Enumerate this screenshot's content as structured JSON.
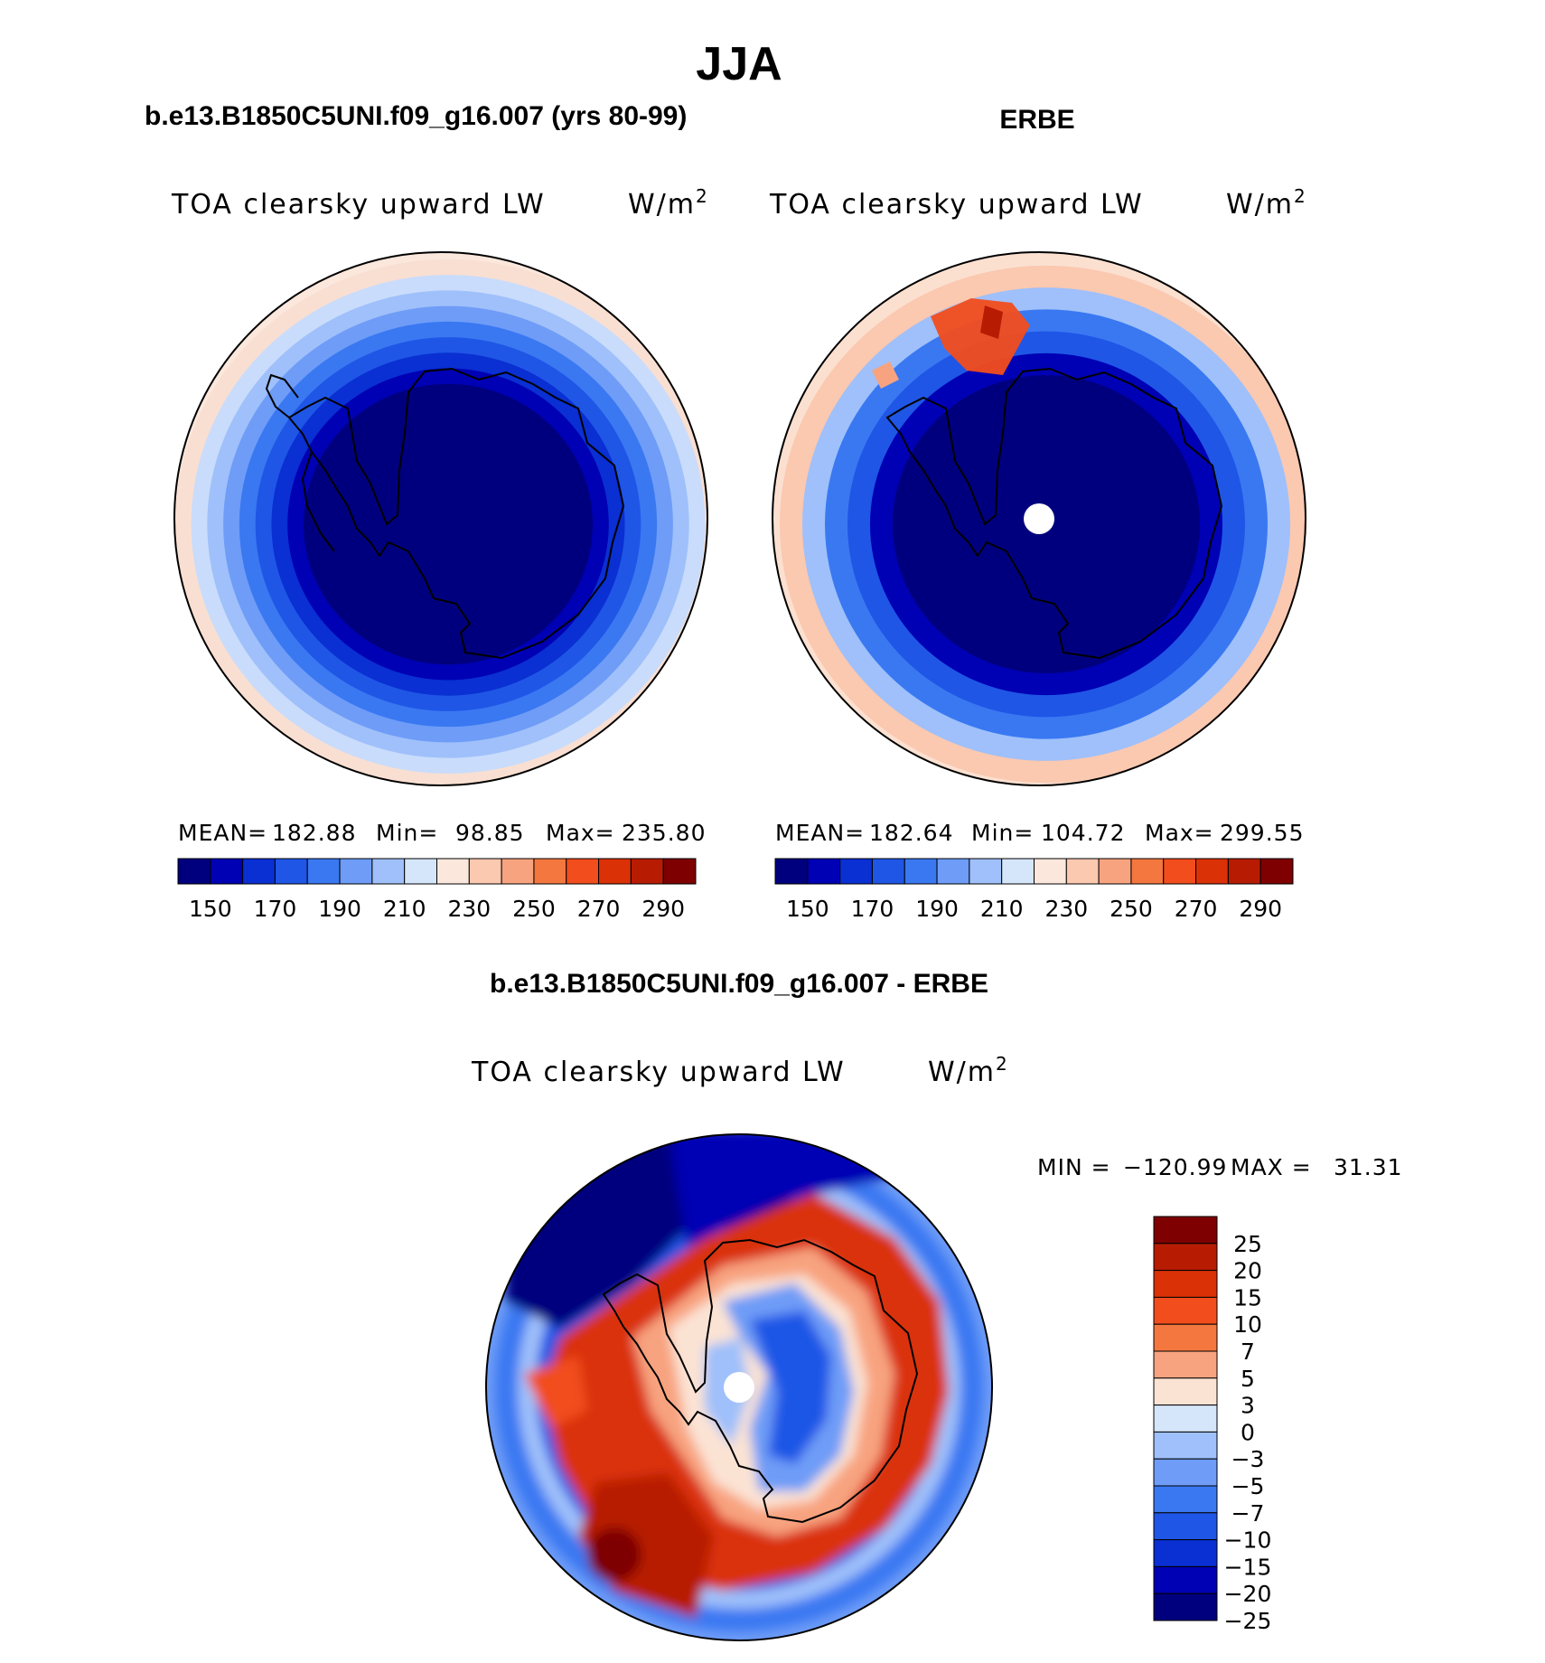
{
  "page": {
    "title": "JJA"
  },
  "chart_data": [
    {
      "type": "heatmap",
      "projection": "south-polar-stereographic",
      "heading": "b.e13.B1850C5UNI.f09_g16.007 (yrs 80-99)",
      "subtitle_left": "TOA clearsky upward LW",
      "units": "W/m",
      "units_sup": "2",
      "stats": {
        "mean_label": "MEAN=",
        "mean": "182.88",
        "min_label": "Min=",
        "min": "98.85",
        "max_label": "Max=",
        "max": "235.80"
      },
      "rings_outward": [
        "#00007e",
        "#0000b4",
        "#0a2fd2",
        "#1f56e6",
        "#3a78f2",
        "#6e9cf7",
        "#9fc0fa",
        "#c9dcfb",
        "#f9dfd2",
        "#fbe7dc"
      ],
      "colorbar": {
        "colors": [
          "#00007e",
          "#0000b4",
          "#0a2fd2",
          "#1f56e6",
          "#3a78f2",
          "#6e9cf7",
          "#9fc0fa",
          "#d5e6fb",
          "#fbe7dc",
          "#fbc8b0",
          "#f8a37f",
          "#f4773f",
          "#f24d1c",
          "#da3107",
          "#b71c03",
          "#7e0000"
        ],
        "tick_labels": [
          "150",
          "170",
          "190",
          "210",
          "230",
          "250",
          "270",
          "290"
        ],
        "tick_positions": [
          1,
          3,
          5,
          7,
          9,
          11,
          13,
          15
        ]
      }
    },
    {
      "type": "heatmap",
      "projection": "south-polar-stereographic",
      "heading": "ERBE",
      "subtitle_left": "TOA clearsky upward LW",
      "units": "W/m",
      "units_sup": "2",
      "stats": {
        "mean_label": "MEAN=",
        "mean": "182.64",
        "min_label": "Min=",
        "min": "104.72",
        "max_label": "Max=",
        "max": "299.55"
      },
      "rings_outward": [
        "#00007e",
        "#0000b4",
        "#1f56e6",
        "#3a78f2",
        "#9fc0fa",
        "#fbc8b0",
        "#fbe0d0"
      ],
      "colorbar": {
        "colors": [
          "#00007e",
          "#0000b4",
          "#0a2fd2",
          "#1f56e6",
          "#3a78f2",
          "#6e9cf7",
          "#9fc0fa",
          "#d5e6fb",
          "#fbe7dc",
          "#fbc8b0",
          "#f8a37f",
          "#f4773f",
          "#f24d1c",
          "#da3107",
          "#b71c03",
          "#7e0000"
        ],
        "tick_labels": [
          "150",
          "170",
          "190",
          "210",
          "230",
          "250",
          "270",
          "290"
        ],
        "tick_positions": [
          1,
          3,
          5,
          7,
          9,
          11,
          13,
          15
        ]
      }
    },
    {
      "type": "heatmap",
      "projection": "south-polar-stereographic",
      "heading": "b.e13.B1850C5UNI.f09_g16.007 - ERBE",
      "subtitle_left": "TOA clearsky upward LW",
      "units": "W/m",
      "units_sup": "2",
      "stats": {
        "min_label": "MIN =",
        "min": "−120.99",
        "max_label": "MAX =",
        "max": "31.31"
      },
      "colorbar": {
        "orientation": "vertical",
        "colors_top_to_bottom": [
          "#7e0000",
          "#b71c03",
          "#da3107",
          "#f24d1c",
          "#f4773f",
          "#f8a37f",
          "#fbe3d4",
          "#d5e6fb",
          "#9fc0fa",
          "#6e9cf7",
          "#3a78f2",
          "#1f56e6",
          "#0a2fd2",
          "#0000b4",
          "#00007e"
        ],
        "tick_labels_top_to_bottom": [
          "25",
          "20",
          "15",
          "10",
          "7",
          "5",
          "3",
          "0",
          "−3",
          "−5",
          "−7",
          "−10",
          "−15",
          "−20",
          "−25"
        ]
      }
    }
  ]
}
